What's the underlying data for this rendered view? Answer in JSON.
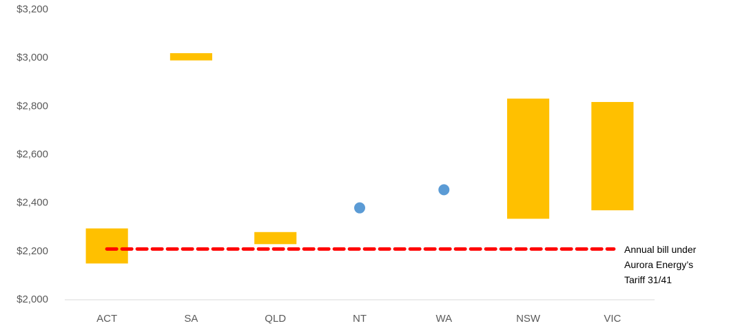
{
  "chart_data": {
    "type": "range",
    "categories": [
      "ACT",
      "SA",
      "QLD",
      "NT",
      "WA",
      "NSW",
      "VIC"
    ],
    "range_low": [
      2150,
      2990,
      2230,
      null,
      null,
      2335,
      2370
    ],
    "range_high": [
      2295,
      3020,
      2280,
      null,
      null,
      2832,
      2818
    ],
    "point_values": [
      null,
      null,
      null,
      2380,
      2455,
      null,
      null
    ],
    "range_color": "#ffc000",
    "point_color": "#5b9bd5",
    "reference_line": {
      "value": 2210,
      "label": "Annual bill under Aurora Energy’s Tariff 31/41",
      "color": "#ff0000"
    },
    "ylim": [
      2000,
      3200
    ],
    "yticks": [
      {
        "value": 2000,
        "label": "$2,000"
      },
      {
        "value": 2200,
        "label": "$2,200"
      },
      {
        "value": 2400,
        "label": "$2,400"
      },
      {
        "value": 2600,
        "label": "$2,600"
      },
      {
        "value": 2800,
        "label": "$2,800"
      },
      {
        "value": 3000,
        "label": "$3,000"
      },
      {
        "value": 3200,
        "label": "$3,200"
      }
    ],
    "grid": false
  }
}
